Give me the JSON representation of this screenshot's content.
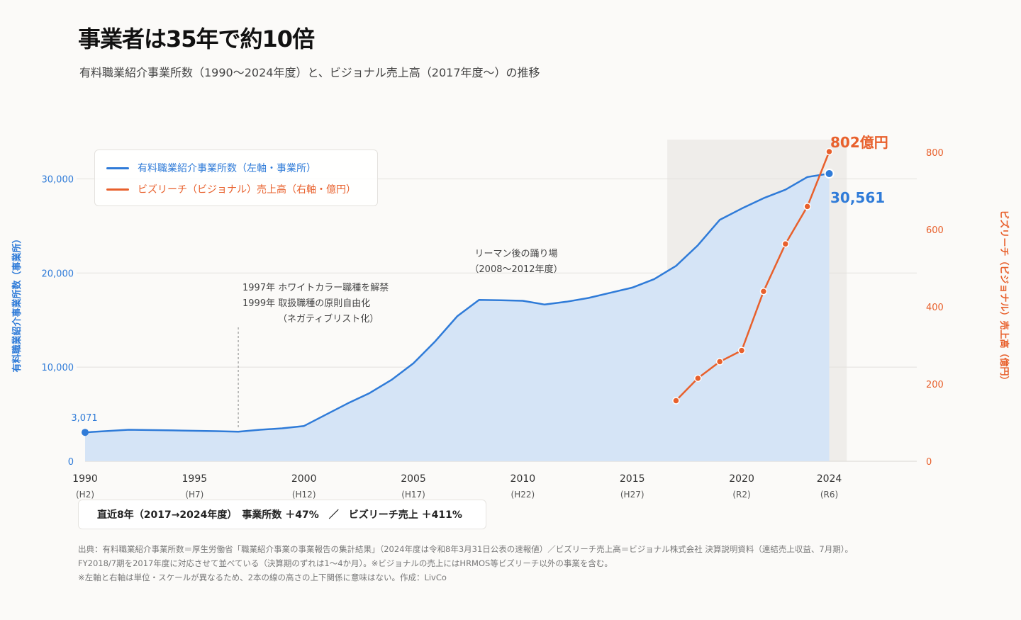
{
  "header": {
    "title": "事業者は35年で約10倍",
    "subtitle": "有料職業紹介事業所数（1990〜2024年度）と、ビジョナル売上高（2017年度〜）の推移"
  },
  "colors": {
    "primary": "#2f7bd8",
    "primary_fill": "#d5e4f6",
    "secondary": "#e8602c",
    "highlight_band": "#efedea"
  },
  "chart_data": {
    "type": "line",
    "x_ticks": [
      {
        "year": 1990,
        "era": "(H2)"
      },
      {
        "year": 1995,
        "era": "(H7)"
      },
      {
        "year": 2000,
        "era": "(H12)"
      },
      {
        "year": 2005,
        "era": "(H17)"
      },
      {
        "year": 2010,
        "era": "(H22)"
      },
      {
        "year": 2015,
        "era": "(H27)"
      },
      {
        "year": 2020,
        "era": "(R2)"
      },
      {
        "year": 2024,
        "era": "(R6)"
      }
    ],
    "xlim": [
      1990,
      2028
    ],
    "left_axis": {
      "label": "有料職業紹介事業所数（事業所）",
      "ylim": [
        0,
        34700
      ],
      "ticks": [
        0,
        10000,
        20000,
        30000
      ],
      "tick_labels": [
        "0",
        "10,000",
        "20,000",
        "30,000"
      ]
    },
    "right_axis": {
      "label": "ビズリーチ（ビジョナル）売上高（億円）",
      "ylim": [
        0,
        846
      ],
      "ticks": [
        0,
        200,
        400,
        600,
        800
      ],
      "tick_labels": [
        "0",
        "200",
        "400",
        "600",
        "800"
      ]
    },
    "series": [
      {
        "name": "有料職業紹介事業所数（左軸・事業所）",
        "axis": "left",
        "x": [
          1990,
          1992,
          1994,
          1996,
          1997,
          1998,
          1999,
          2000,
          2001,
          2002,
          2003,
          2004,
          2005,
          2006,
          2007,
          2008,
          2009,
          2010,
          2011,
          2012,
          2013,
          2014,
          2015,
          2016,
          2017,
          2018,
          2019,
          2020,
          2021,
          2022,
          2023,
          2024
        ],
        "values": [
          3071,
          3350,
          3280,
          3200,
          3150,
          3350,
          3500,
          3750,
          4950,
          6150,
          7250,
          8650,
          10400,
          12750,
          15400,
          17150,
          17100,
          17050,
          16650,
          16950,
          17350,
          17900,
          18450,
          19350,
          20750,
          22950,
          25650,
          26850,
          27950,
          28850,
          30200,
          30561
        ]
      },
      {
        "name": "ビズリーチ（ビジョナル）売上高（右軸・億円）",
        "axis": "right",
        "x": [
          2017,
          2018,
          2019,
          2020,
          2021,
          2022,
          2023,
          2024
        ],
        "values": [
          157,
          215,
          258,
          287,
          440,
          563,
          660,
          802
        ]
      }
    ],
    "highlight_range": [
      2016.6,
      2024.8
    ],
    "data_labels": {
      "first_left": "3,071",
      "last_left": "30,561",
      "last_right": "802億円"
    },
    "annotations": [
      {
        "lines": [
          "1997年 ホワイトカラー職種を解禁",
          "1999年 取扱職種の原則自由化",
          "（ネガティブリスト化）"
        ],
        "marker_year": 1997
      },
      {
        "lines": [
          "リーマン後の踊り場",
          "（2008〜2012年度）"
        ]
      }
    ]
  },
  "summary": {
    "text": "直近8年（2017→2024年度）　事業所数 ＋47%　／　ビズリーチ売上 ＋411%"
  },
  "sources": [
    "出典：有料職業紹介事業所数＝厚生労働省「職業紹介事業の事業報告の集計結果」（2024年度は令和8年3月31日公表の速報値）／ビズリーチ売上高＝ビジョナル株式会社 決算説明資料（連結売上収益、7月期）。",
    "FY2018/7期を2017年度に対応させて並べている（決算期のずれは1〜4か月）。※ビジョナルの売上にはHRMOS等ビズリーチ以外の事業を含む。",
    "※左軸と右軸は単位・スケールが異なるため、2本の線の高さの上下関係に意味はない。作成：LivCo"
  ]
}
